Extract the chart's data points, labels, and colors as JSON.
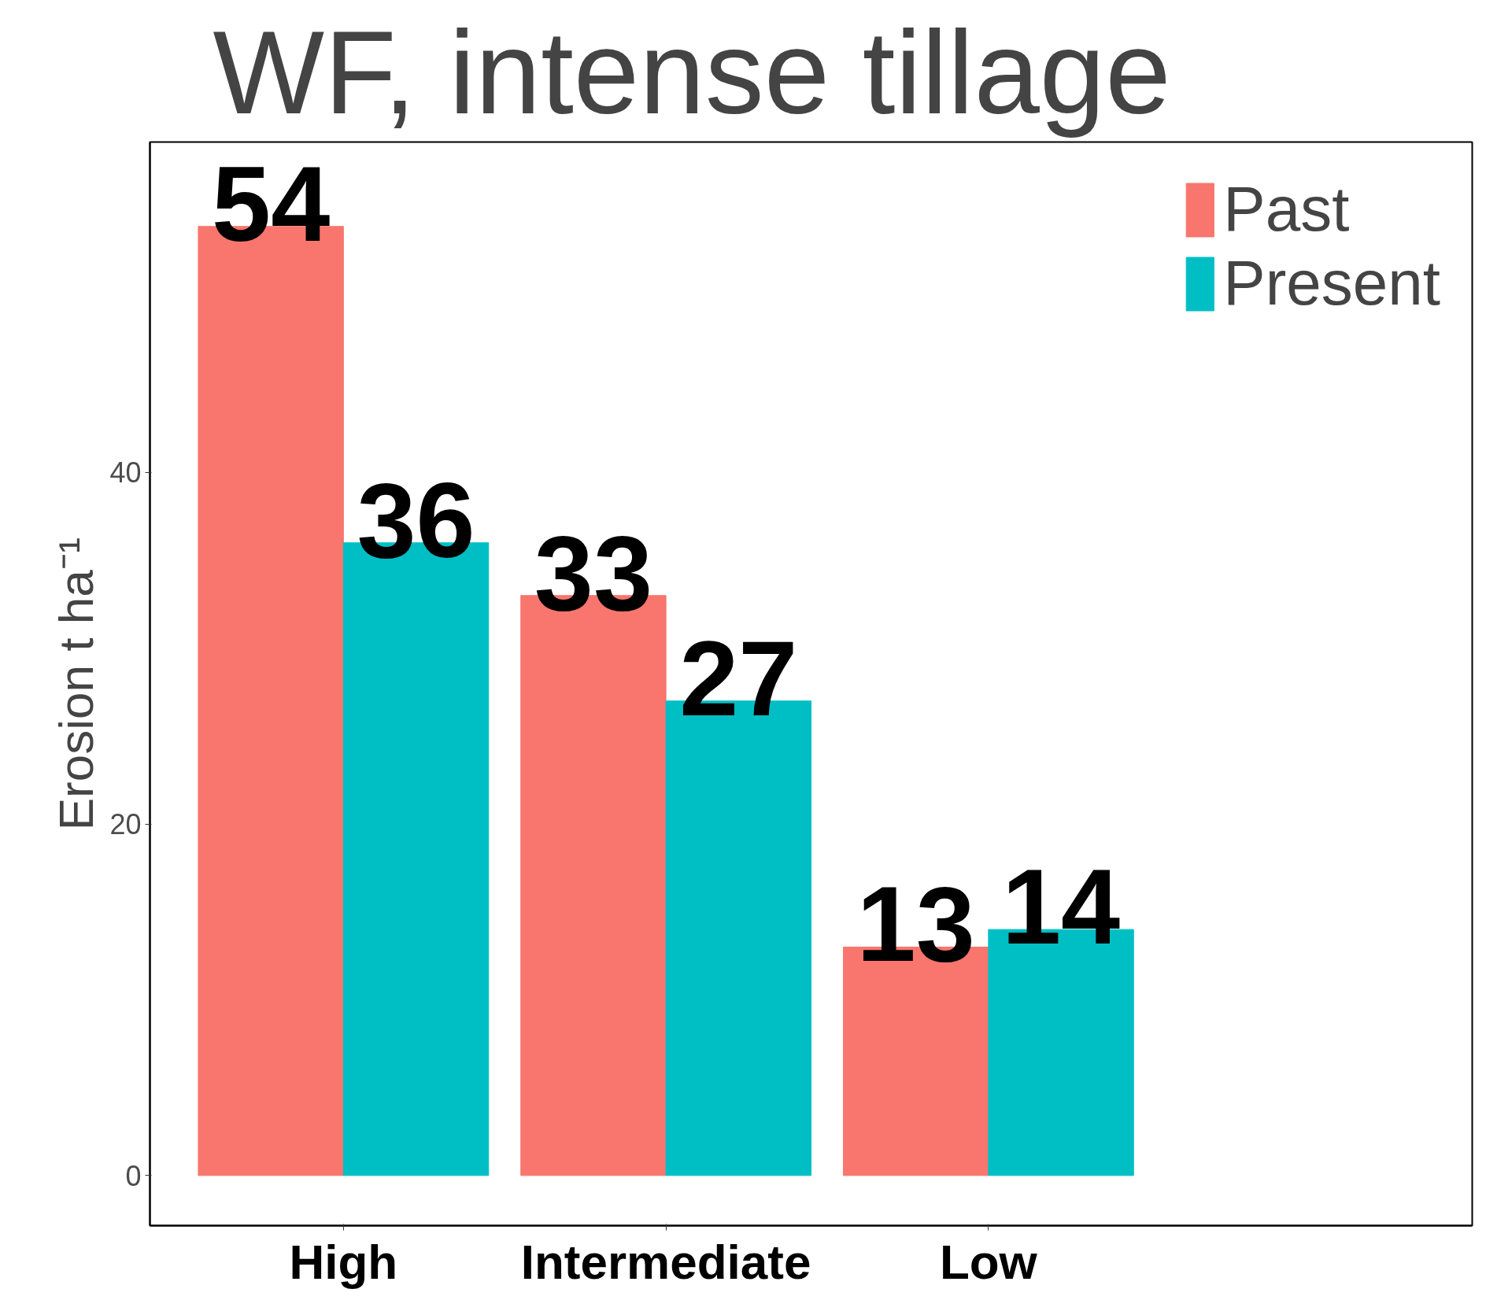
{
  "chart_data": {
    "type": "bar",
    "title": "WF, intense tillage",
    "ylabel": "Erosion t ha⁻¹",
    "categories": [
      "High",
      "Intermediate",
      "Low"
    ],
    "series": [
      {
        "name": "Past",
        "color": "#f8766d",
        "values": [
          54,
          33,
          13
        ]
      },
      {
        "name": "Present",
        "color": "#00bfc4",
        "values": [
          36,
          27,
          14
        ]
      }
    ],
    "ylim": [
      -2.85,
      58.8
    ],
    "yticks": [
      0,
      20,
      40
    ],
    "grid": false,
    "legend": "top right",
    "data_labels": true
  }
}
